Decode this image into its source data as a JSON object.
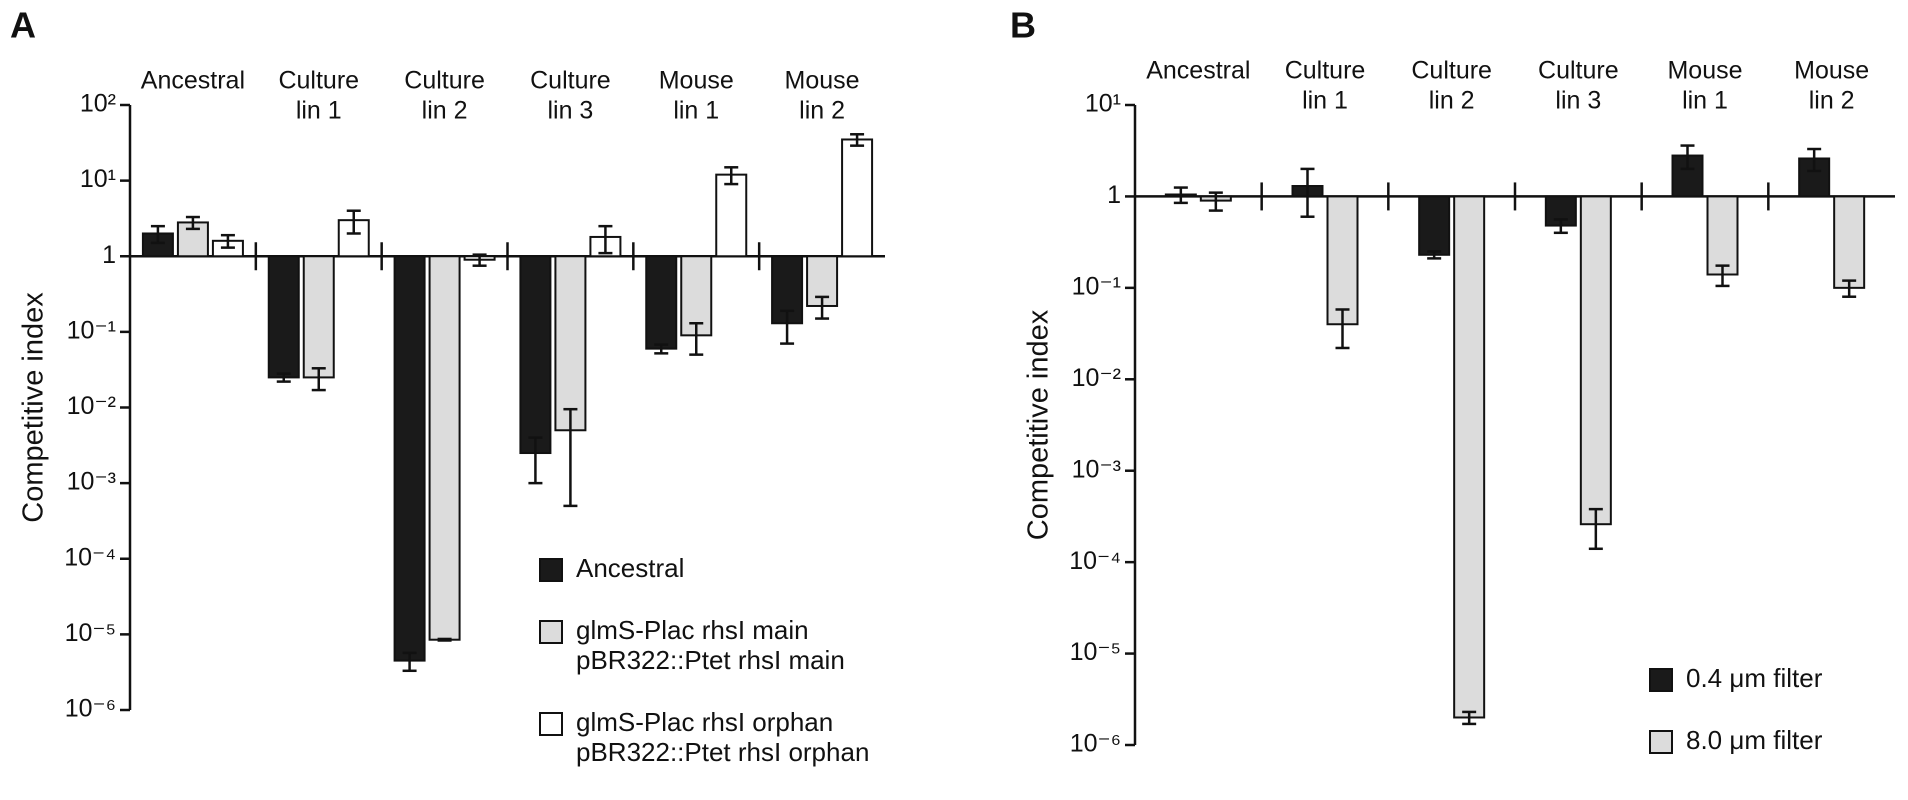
{
  "chart_data": [
    {
      "type": "bar",
      "panel": "A",
      "y_label": "Competitive index",
      "log_scale": true,
      "baseline": 1,
      "categories": [
        [
          "Ancestral"
        ],
        [
          "Culture",
          "lin 1"
        ],
        [
          "Culture",
          "lin 2"
        ],
        [
          "Culture",
          "lin 3"
        ],
        [
          "Mouse",
          "lin 1"
        ],
        [
          "Mouse",
          "lin 2"
        ]
      ],
      "ylim": [
        1e-06,
        100
      ],
      "yticks": [
        {
          "value": 100,
          "label": "10²"
        },
        {
          "value": 10,
          "label": "10¹"
        },
        1,
        {
          "value": 0.1,
          "label": "10⁻¹"
        },
        {
          "value": 0.01,
          "label": "10⁻²"
        },
        {
          "value": 0.001,
          "label": "10⁻³"
        },
        {
          "value": 0.0001,
          "label": "10⁻⁴"
        },
        {
          "value": 1e-05,
          "label": "10⁻⁵"
        },
        {
          "value": 1e-06,
          "label": "10⁻⁶"
        }
      ],
      "legend": "lower right",
      "series": [
        {
          "name": [
            "Ancestral"
          ],
          "color": "#1a1a1a",
          "values": [
            2,
            0.025,
            4.5e-06,
            0.0025,
            0.06,
            0.13
          ],
          "errors": [
            0.5,
            0.003,
            1.2e-06,
            0.0015,
            0.008,
            0.06
          ]
        },
        {
          "name": [
            "glmS-Plac rhsI main",
            "pBR322::Ptet rhsI main"
          ],
          "color": "#dcdcdc",
          "values": [
            2.8,
            0.025,
            8.5e-06,
            0.005,
            0.09,
            0.22
          ],
          "errors": [
            0.5,
            0.008,
            2e-07,
            0.0045,
            0.04,
            0.07
          ]
        },
        {
          "name": [
            "glmS-Plac rhsI orphan",
            "pBR322::Ptet rhsI orphan"
          ],
          "color": "#ffffff",
          "values": [
            1.6,
            3,
            0.9,
            1.8,
            12,
            35
          ],
          "errors": [
            0.3,
            1,
            0.15,
            0.7,
            3,
            6
          ]
        }
      ]
    },
    {
      "type": "bar",
      "panel": "B",
      "y_label": "Competitive index",
      "log_scale": true,
      "baseline": 1,
      "categories": [
        [
          "Ancestral"
        ],
        [
          "Culture",
          "lin 1"
        ],
        [
          "Culture",
          "lin 2"
        ],
        [
          "Culture",
          "lin 3"
        ],
        [
          "Mouse",
          "lin 1"
        ],
        [
          "Mouse",
          "lin 2"
        ]
      ],
      "ylim": [
        1e-06,
        10
      ],
      "yticks": [
        {
          "value": 10,
          "label": "10¹"
        },
        1,
        {
          "value": 0.1,
          "label": "10⁻¹"
        },
        {
          "value": 0.01,
          "label": "10⁻²"
        },
        {
          "value": 0.001,
          "label": "10⁻³"
        },
        {
          "value": 0.0001,
          "label": "10⁻⁴"
        },
        {
          "value": 1e-05,
          "label": "10⁻⁵"
        },
        {
          "value": 1e-06,
          "label": "10⁻⁶"
        }
      ],
      "legend": "lower right",
      "series": [
        {
          "name": [
            "0.4 μm filter"
          ],
          "color": "#1a1a1a",
          "values": [
            1.05,
            1.3,
            0.23,
            0.48,
            2.8,
            2.6
          ],
          "errors": [
            0.2,
            0.7,
            0.02,
            0.08,
            0.8,
            0.7
          ]
        },
        {
          "name": [
            "8.0 μm filter"
          ],
          "color": "#dcdcdc",
          "values": [
            0.9,
            0.04,
            2e-06,
            0.00026,
            0.14,
            0.1
          ],
          "errors": [
            0.2,
            0.018,
            3e-07,
            0.00012,
            0.035,
            0.02
          ]
        }
      ]
    }
  ]
}
